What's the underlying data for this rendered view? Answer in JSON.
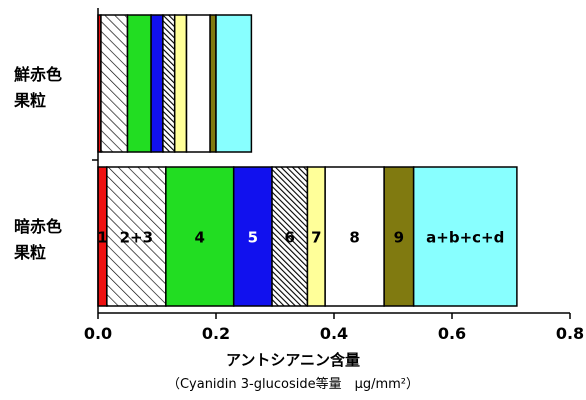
{
  "chart_data": {
    "type": "bar",
    "orientation": "horizontal",
    "stacked": true,
    "categories": [
      "鮮赤色果粒",
      "暗赤色果粒"
    ],
    "category_labels": [
      {
        "line1": "鮮赤色",
        "line2": "果粒"
      },
      {
        "line1": "暗赤色",
        "line2": "果粒"
      }
    ],
    "xlim": [
      0,
      0.8
    ],
    "xticks": [
      "0.0",
      "0.2",
      "0.4",
      "0.6",
      "0.8"
    ],
    "xlabel": "アントシアニン含量",
    "xlabel_sub": "（Cyanidin 3-glucoside等量　μg/mm²）",
    "grid": false,
    "series": [
      {
        "name": "1",
        "color": "#ee1111",
        "pattern": "solid",
        "values": [
          0.005,
          0.015
        ]
      },
      {
        "name": "2+3",
        "color": "#ffffff",
        "pattern": "diag",
        "values": [
          0.045,
          0.1
        ]
      },
      {
        "name": "4",
        "color": "#22dd22",
        "pattern": "solid",
        "values": [
          0.04,
          0.115
        ]
      },
      {
        "name": "5",
        "color": "#1111ee",
        "pattern": "solid",
        "values": [
          0.02,
          0.065
        ]
      },
      {
        "name": "6",
        "color": "#ffffff",
        "pattern": "dense",
        "values": [
          0.02,
          0.06
        ]
      },
      {
        "name": "7",
        "color": "#ffff99",
        "pattern": "solid",
        "values": [
          0.02,
          0.03
        ]
      },
      {
        "name": "8",
        "color": "#ffffff",
        "pattern": "solid",
        "values": [
          0.04,
          0.1
        ]
      },
      {
        "name": "9",
        "color": "#807a10",
        "pattern": "solid",
        "values": [
          0.01,
          0.05
        ]
      },
      {
        "name": "a+b+c+d",
        "color": "#88ffff",
        "pattern": "solid",
        "values": [
          0.06,
          0.175
        ]
      }
    ],
    "label_colors": [
      "#000000",
      "#000000",
      "#000000",
      "#ffffff",
      "#000000",
      "#000000",
      "#000000",
      "#000000",
      "#000000"
    ]
  }
}
